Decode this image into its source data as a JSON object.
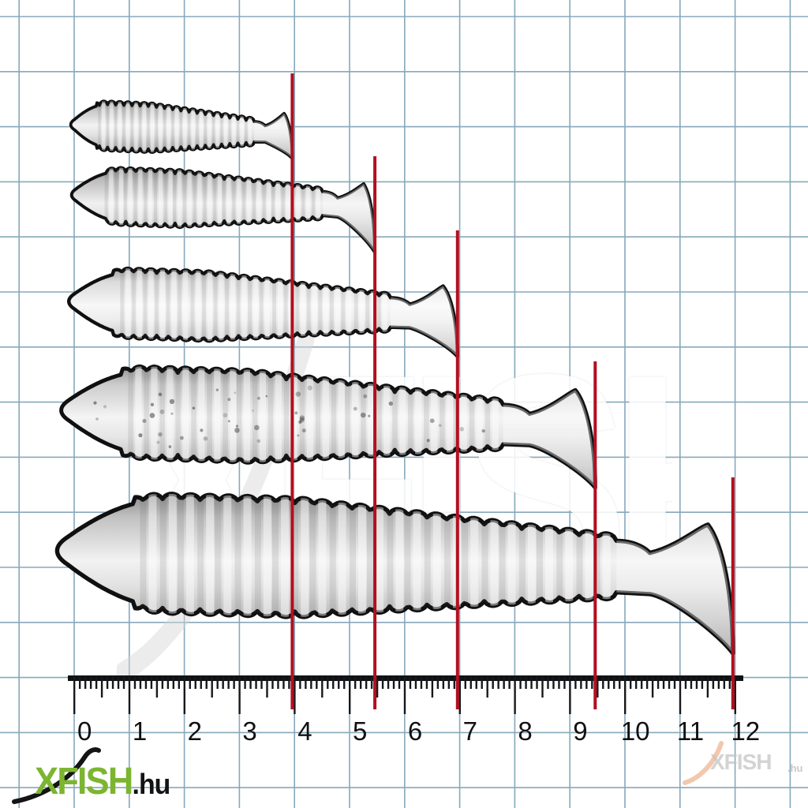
{
  "scene": {
    "background": "#ffffff",
    "grid_color": "#6a93ab",
    "marker_color": "#b30f1f",
    "outline_color": "#101010",
    "ruler_color": "#15181c"
  },
  "ruler": {
    "unit": "cm",
    "labels": [
      "0",
      "1",
      "2",
      "3",
      "4",
      "5",
      "6",
      "7",
      "8",
      "9",
      "10",
      "11",
      "12"
    ]
  },
  "lures": [
    {
      "label": "lure-4cm",
      "length_cm": 4.0,
      "shade": "#c6c6c6",
      "speckled": false
    },
    {
      "label": "lure-5.5cm",
      "length_cm": 5.5,
      "shade": "#bdbdbd",
      "speckled": false
    },
    {
      "label": "lure-7cm",
      "length_cm": 7.0,
      "shade": "#dadada",
      "speckled": false
    },
    {
      "label": "lure-9.5cm",
      "length_cm": 9.5,
      "shade": "#cccccc",
      "speckled": true
    },
    {
      "label": "lure-12cm",
      "length_cm": 12.0,
      "shade": "#c2c2c2",
      "speckled": false
    }
  ],
  "watermark": {
    "center_text": "XFISH",
    "corner_text": "XFISH",
    "corner_tld": ".hu"
  },
  "logo": {
    "main": "XFISH",
    "tld": ".hu",
    "main_color": "#7cb531",
    "tld_color": "#131313"
  }
}
